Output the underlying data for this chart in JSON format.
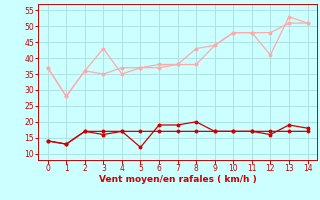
{
  "x": [
    0,
    1,
    2,
    3,
    4,
    5,
    6,
    7,
    8,
    9,
    10,
    11,
    12,
    13,
    14
  ],
  "line1_y": [
    37,
    28,
    36,
    43,
    35,
    37,
    37,
    38,
    38,
    44,
    48,
    48,
    41,
    53,
    51
  ],
  "line2_y": [
    37,
    28,
    36,
    35,
    37,
    37,
    38,
    38,
    43,
    44,
    48,
    48,
    48,
    51,
    51
  ],
  "line3_y": [
    14,
    13,
    17,
    16,
    17,
    12,
    19,
    19,
    20,
    17,
    17,
    17,
    16,
    19,
    18
  ],
  "line4_y": [
    14,
    13,
    17,
    17,
    17,
    17,
    17,
    17,
    17,
    17,
    17,
    17,
    17,
    17,
    17
  ],
  "line1_color": "#ffaaaa",
  "line2_color": "#ffaaaa",
  "line3_color": "#cc0000",
  "line4_color": "#cc0000",
  "bg_color": "#ccffff",
  "grid_color": "#aadddd",
  "tick_color": "#cc0000",
  "xlabel": "Vent moyen/en rafales ( km/h )",
  "xlabel_color": "#cc0000",
  "yticks": [
    10,
    15,
    20,
    25,
    30,
    35,
    40,
    45,
    50,
    55
  ],
  "xticks": [
    0,
    1,
    2,
    3,
    4,
    5,
    6,
    7,
    8,
    9,
    10,
    11,
    12,
    13,
    14
  ],
  "ylim": [
    8,
    57
  ],
  "xlim": [
    -0.5,
    14.5
  ]
}
